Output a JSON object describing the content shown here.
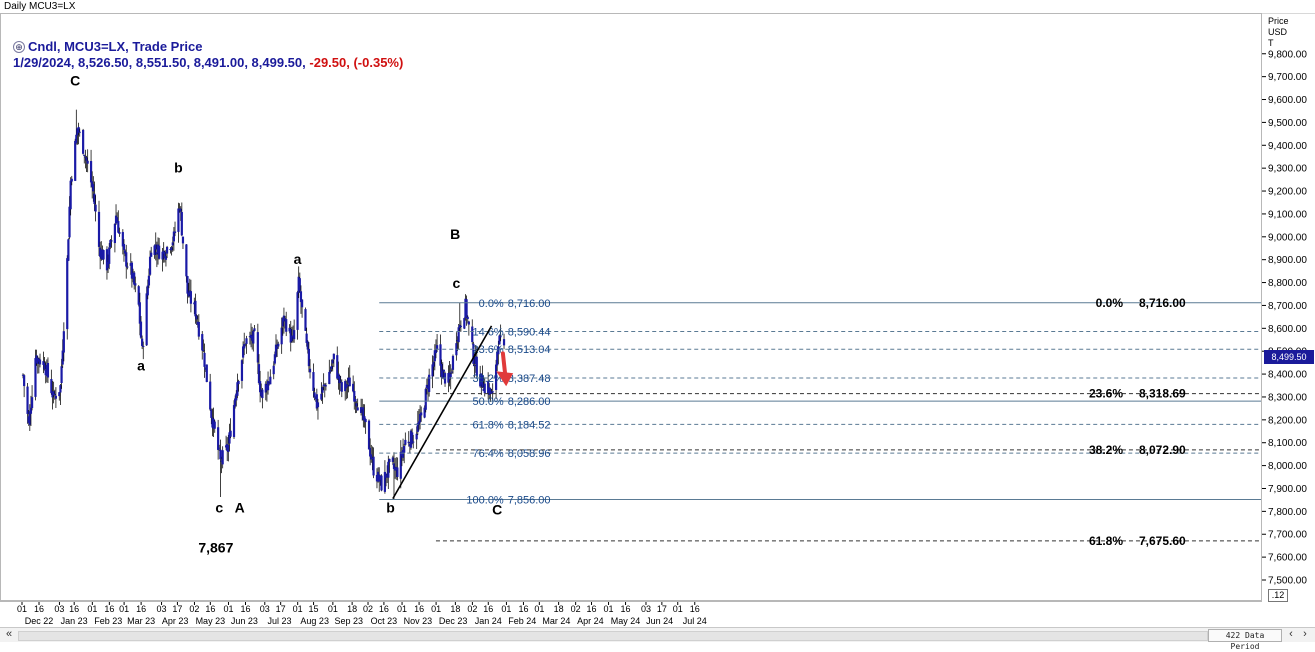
{
  "window_title": "Daily MCU3=LX",
  "legend": {
    "line1": "Cndl, MCU3=LX, Trade Price",
    "line2_main": "1/29/2024, 8,526.50, 8,551.50, 8,491.00, 8,499.50,",
    "line2_change": "-29.50, (-0.35%)"
  },
  "price_axis_label": "Price\nUSD\nT",
  "current_price_tag": "8,499.50",
  "zoom_label": ".12",
  "data_period": "422 Data Period",
  "colors": {
    "candle": "#1a1aa6",
    "wick": "#111111",
    "fib_line": "#5a7a94",
    "fib_text": "#1a4a8a",
    "trend_line": "#000000",
    "arrow": "#e03a3a"
  },
  "chart_data": {
    "type": "candlestick",
    "x_range": [
      "2022-12-01",
      "2024-07-31"
    ],
    "ylim": [
      7450,
      9900
    ],
    "y_ticks": [
      7500,
      7600,
      7700,
      7800,
      7900,
      8000,
      8100,
      8200,
      8300,
      8400,
      8500,
      8600,
      8700,
      8800,
      8900,
      9000,
      9100,
      9200,
      9300,
      9400,
      9500,
      9600,
      9700,
      9800
    ],
    "y_tick_labels": [
      "7,500.00",
      "7,600.00",
      "7,700.00",
      "7,800.00",
      "7,900.00",
      "8,000.00",
      "8,100.00",
      "8,200.00",
      "8,300.00",
      "8,400.00",
      "8,500.00",
      "8,600.00",
      "8,700.00",
      "8,800.00",
      "8,900.00",
      "9,000.00",
      "9,100.00",
      "9,200.00",
      "9,300.00",
      "9,400.00",
      "9,500.00",
      "9,600.00",
      "9,700.00",
      "9,800.00"
    ],
    "x_ticks": [
      {
        "date": "2022-12-01",
        "label": "01"
      },
      {
        "date": "2022-12-16",
        "label": "16"
      },
      {
        "date": "2023-01-03",
        "label": "03"
      },
      {
        "date": "2023-01-16",
        "label": "16"
      },
      {
        "date": "2023-02-01",
        "label": "01"
      },
      {
        "date": "2023-02-16",
        "label": "16"
      },
      {
        "date": "2023-03-01",
        "label": "01"
      },
      {
        "date": "2023-03-16",
        "label": "16"
      },
      {
        "date": "2023-04-03",
        "label": "03"
      },
      {
        "date": "2023-04-17",
        "label": "17"
      },
      {
        "date": "2023-05-02",
        "label": "02"
      },
      {
        "date": "2023-05-16",
        "label": "16"
      },
      {
        "date": "2023-06-01",
        "label": "01"
      },
      {
        "date": "2023-06-16",
        "label": "16"
      },
      {
        "date": "2023-07-03",
        "label": "03"
      },
      {
        "date": "2023-07-17",
        "label": "17"
      },
      {
        "date": "2023-08-01",
        "label": "01"
      },
      {
        "date": "2023-08-15",
        "label": "15"
      },
      {
        "date": "2023-09-01",
        "label": "01"
      },
      {
        "date": "2023-09-18",
        "label": "18"
      },
      {
        "date": "2023-10-02",
        "label": "02"
      },
      {
        "date": "2023-10-16",
        "label": "16"
      },
      {
        "date": "2023-11-01",
        "label": "01"
      },
      {
        "date": "2023-11-16",
        "label": "16"
      },
      {
        "date": "2023-12-01",
        "label": "01"
      },
      {
        "date": "2023-12-18",
        "label": "18"
      },
      {
        "date": "2024-01-02",
        "label": "02"
      },
      {
        "date": "2024-01-16",
        "label": "16"
      },
      {
        "date": "2024-02-01",
        "label": "01"
      },
      {
        "date": "2024-02-16",
        "label": "16"
      },
      {
        "date": "2024-03-01",
        "label": "01"
      },
      {
        "date": "2024-03-18",
        "label": "18"
      },
      {
        "date": "2024-04-02",
        "label": "02"
      },
      {
        "date": "2024-04-16",
        "label": "16"
      },
      {
        "date": "2024-05-01",
        "label": "01"
      },
      {
        "date": "2024-05-16",
        "label": "16"
      },
      {
        "date": "2024-06-03",
        "label": "03"
      },
      {
        "date": "2024-06-17",
        "label": "17"
      },
      {
        "date": "2024-07-01",
        "label": "01"
      },
      {
        "date": "2024-07-16",
        "label": "16"
      }
    ],
    "month_labels": [
      {
        "date": "2022-12-16",
        "label": "Dec 22"
      },
      {
        "date": "2023-01-16",
        "label": "Jan 23"
      },
      {
        "date": "2023-02-15",
        "label": "Feb 23"
      },
      {
        "date": "2023-03-16",
        "label": "Mar 23"
      },
      {
        "date": "2023-04-15",
        "label": "Apr 23"
      },
      {
        "date": "2023-05-16",
        "label": "May 23"
      },
      {
        "date": "2023-06-15",
        "label": "Jun 23"
      },
      {
        "date": "2023-07-16",
        "label": "Jul 23"
      },
      {
        "date": "2023-08-16",
        "label": "Aug 23"
      },
      {
        "date": "2023-09-15",
        "label": "Sep 23"
      },
      {
        "date": "2023-10-16",
        "label": "Oct 23"
      },
      {
        "date": "2023-11-15",
        "label": "Nov 23"
      },
      {
        "date": "2023-12-16",
        "label": "Dec 23"
      },
      {
        "date": "2024-01-16",
        "label": "Jan 24"
      },
      {
        "date": "2024-02-15",
        "label": "Feb 24"
      },
      {
        "date": "2024-03-16",
        "label": "Mar 24"
      },
      {
        "date": "2024-04-15",
        "label": "Apr 24"
      },
      {
        "date": "2024-05-16",
        "label": "May 24"
      },
      {
        "date": "2024-06-15",
        "label": "Jun 24"
      },
      {
        "date": "2024-07-16",
        "label": "Jul 24"
      }
    ],
    "close_path": [
      [
        "2022-12-01",
        8400
      ],
      [
        "2022-12-06",
        8180
      ],
      [
        "2022-12-12",
        8480
      ],
      [
        "2022-12-20",
        8450
      ],
      [
        "2022-12-28",
        8300
      ],
      [
        "2023-01-03",
        8350
      ],
      [
        "2023-01-09",
        8900
      ],
      [
        "2023-01-12",
        9250
      ],
      [
        "2023-01-18",
        9480
      ],
      [
        "2023-01-24",
        9380
      ],
      [
        "2023-02-01",
        9200
      ],
      [
        "2023-02-06",
        8960
      ],
      [
        "2023-02-13",
        8880
      ],
      [
        "2023-02-21",
        9100
      ],
      [
        "2023-02-28",
        8920
      ],
      [
        "2023-03-06",
        8860
      ],
      [
        "2023-03-13",
        8700
      ],
      [
        "2023-03-16",
        8500
      ],
      [
        "2023-03-24",
        8970
      ],
      [
        "2023-04-03",
        8930
      ],
      [
        "2023-04-13",
        9000
      ],
      [
        "2023-04-18",
        9150
      ],
      [
        "2023-04-25",
        8760
      ],
      [
        "2023-05-02",
        8680
      ],
      [
        "2023-05-09",
        8500
      ],
      [
        "2023-05-16",
        8230
      ],
      [
        "2023-05-24",
        8020
      ],
      [
        "2023-05-31",
        8090
      ],
      [
        "2023-06-08",
        8380
      ],
      [
        "2023-06-15",
        8550
      ],
      [
        "2023-06-23",
        8560
      ],
      [
        "2023-06-29",
        8310
      ],
      [
        "2023-07-06",
        8380
      ],
      [
        "2023-07-13",
        8520
      ],
      [
        "2023-07-19",
        8650
      ],
      [
        "2023-07-27",
        8540
      ],
      [
        "2023-08-01",
        8800
      ],
      [
        "2023-08-09",
        8480
      ],
      [
        "2023-08-17",
        8270
      ],
      [
        "2023-08-25",
        8370
      ],
      [
        "2023-09-01",
        8470
      ],
      [
        "2023-09-08",
        8330
      ],
      [
        "2023-09-15",
        8370
      ],
      [
        "2023-09-22",
        8280
      ],
      [
        "2023-09-29",
        8170
      ],
      [
        "2023-10-06",
        7990
      ],
      [
        "2023-10-13",
        7920
      ],
      [
        "2023-10-20",
        8000
      ],
      [
        "2023-10-27",
        7980
      ],
      [
        "2023-11-03",
        8110
      ],
      [
        "2023-11-10",
        8130
      ],
      [
        "2023-11-17",
        8210
      ],
      [
        "2023-11-24",
        8390
      ],
      [
        "2023-12-01",
        8510
      ],
      [
        "2023-12-06",
        8400
      ],
      [
        "2023-12-12",
        8370
      ],
      [
        "2023-12-18",
        8570
      ],
      [
        "2023-12-26",
        8700
      ],
      [
        "2024-01-02",
        8480
      ],
      [
        "2024-01-08",
        8380
      ],
      [
        "2024-01-15",
        8340
      ],
      [
        "2024-01-19",
        8300
      ],
      [
        "2024-01-24",
        8560
      ],
      [
        "2024-01-29",
        8499.5
      ]
    ],
    "extremes": [
      {
        "date": "2023-01-17",
        "price": 9560
      },
      {
        "date": "2023-05-24",
        "price": 7867
      },
      {
        "date": "2023-10-24",
        "price": 7856
      },
      {
        "date": "2023-12-21",
        "price": 8716
      }
    ],
    "wave_labels": [
      {
        "text": "C",
        "date": "2023-01-16",
        "price": 9665,
        "bold": true
      },
      {
        "text": "b",
        "date": "2023-04-17",
        "price": 9285,
        "bold": true
      },
      {
        "text": "a",
        "date": "2023-03-15",
        "price": 8420,
        "bold": true
      },
      {
        "text": "c",
        "date": "2023-05-23",
        "price": 7800,
        "bold": true
      },
      {
        "text": "A",
        "date": "2023-06-10",
        "price": 7800,
        "bold": true
      },
      {
        "text": "7,867",
        "date": "2023-05-20",
        "price": 7625,
        "bold": true
      },
      {
        "text": "a",
        "date": "2023-07-31",
        "price": 8885,
        "bold": true
      },
      {
        "text": "b",
        "date": "2023-10-21",
        "price": 7800,
        "bold": true
      },
      {
        "text": "c",
        "date": "2023-12-18",
        "price": 8780,
        "bold": true
      },
      {
        "text": "B",
        "date": "2023-12-17",
        "price": 8995,
        "bold": true
      },
      {
        "text": "C",
        "date": "2024-01-23",
        "price": 7790,
        "bold": true
      }
    ],
    "fib_retracement": [
      {
        "label": "0.0%",
        "value": "8,716.00",
        "price": 8716,
        "dashed": false
      },
      {
        "label": "14.6%",
        "value": "8,590.44",
        "price": 8590.44,
        "dashed": true
      },
      {
        "label": "23.6%",
        "value": "8,513.04",
        "price": 8513.04,
        "dashed": true
      },
      {
        "label": "38.2%",
        "value": "8,387.48",
        "price": 8387.48,
        "dashed": true
      },
      {
        "label": "50.0%",
        "value": "8,286.00",
        "price": 8286,
        "dashed": false
      },
      {
        "label": "61.8%",
        "value": "8,184.52",
        "price": 8184.52,
        "dashed": true
      },
      {
        "label": "76.4%",
        "value": "8,058.96",
        "price": 8058.96,
        "dashed": true
      },
      {
        "label": "100.0%",
        "value": "7,856.00",
        "price": 7856,
        "dashed": false
      }
    ],
    "fib_extension": [
      {
        "label": "0.0%",
        "value": "8,716.00",
        "price": 8716
      },
      {
        "label": "23.6%",
        "value": "8,318.69",
        "price": 8318.69
      },
      {
        "label": "38.2%",
        "value": "8,072.90",
        "price": 8072.9
      },
      {
        "label": "61.8%",
        "value": "7,675.60",
        "price": 7675.6
      }
    ],
    "trendline": {
      "from": {
        "date": "2023-10-23",
        "price": 7860
      },
      "to": {
        "date": "2024-01-18",
        "price": 8615
      }
    },
    "arrow": {
      "from": {
        "date": "2024-01-28",
        "price": 8495
      },
      "to": {
        "date": "2024-01-30",
        "price": 8360
      }
    },
    "grid": false
  }
}
